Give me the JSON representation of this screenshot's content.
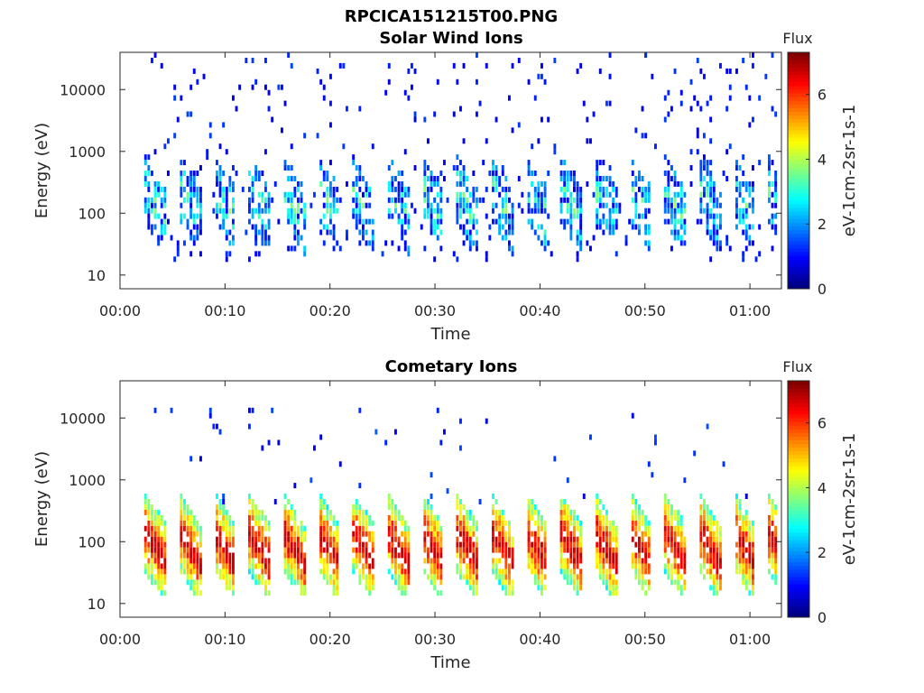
{
  "figure_title": "RPCICA151215T00.PNG",
  "chart_data": [
    {
      "type": "heatmap",
      "title": "Solar Wind Ions",
      "xlabel": "Time",
      "ylabel": "Energy (eV)",
      "y_scale": "log",
      "ylim": [
        6,
        40000
      ],
      "xlim_minutes": [
        0,
        63
      ],
      "x_ticks": [
        "00:00",
        "00:10",
        "00:20",
        "00:30",
        "00:40",
        "00:50",
        "01:00"
      ],
      "y_ticks": [
        "10",
        "100",
        "1000",
        "10000"
      ],
      "colorbar": {
        "title": "Flux",
        "label": "eV-1cm-2sr-1s-1",
        "range": [
          0,
          7.3
        ],
        "ticks": [
          "0",
          "2",
          "4",
          "6"
        ],
        "colormap": "jet"
      },
      "data_start_minute": 2.3,
      "data_end_minute": 62.5,
      "sweep_period_minutes": 3.3,
      "typical_peak_energy_eV": 60,
      "typical_peak_flux": 3.5,
      "max_flux": 4.8,
      "description_energy_range_eV": [
        18,
        40000
      ]
    },
    {
      "type": "heatmap",
      "title": "Cometary Ions",
      "xlabel": "Time",
      "ylabel": "Energy (eV)",
      "y_scale": "log",
      "ylim": [
        6,
        40000
      ],
      "xlim_minutes": [
        0,
        63
      ],
      "x_ticks": [
        "00:00",
        "00:10",
        "00:20",
        "00:30",
        "00:40",
        "00:50",
        "01:00"
      ],
      "y_ticks": [
        "10",
        "100",
        "1000",
        "10000"
      ],
      "colorbar": {
        "title": "Flux",
        "label": "eV-1cm-2sr-1s-1",
        "range": [
          0,
          7.3
        ],
        "ticks": [
          "0",
          "2",
          "4",
          "6"
        ],
        "colormap": "jet"
      },
      "data_start_minute": 2.3,
      "data_end_minute": 62.5,
      "sweep_period_minutes": 3.3,
      "typical_peak_energy_eV": 35,
      "typical_peak_flux": 6.0,
      "max_flux": 6.8,
      "description_energy_range_eV": [
        12,
        16000
      ]
    }
  ]
}
